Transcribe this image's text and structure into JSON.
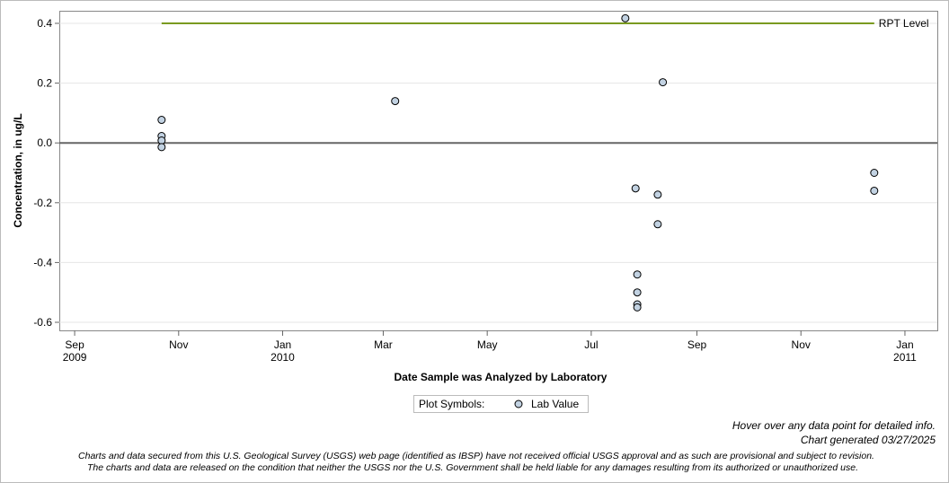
{
  "chart_data": {
    "type": "scatter",
    "y_label": "Concentration, in ug/L",
    "x_label": "Date Sample was Analyzed by Laboratory",
    "xlim": [
      "2009-08-23",
      "2011-01-20"
    ],
    "ylim": [
      -0.627,
      0.442
    ],
    "yticks": [
      {
        "value": 0.4,
        "label": "0.4"
      },
      {
        "value": 0.2,
        "label": "0.2"
      },
      {
        "value": 0,
        "label": "0.0"
      },
      {
        "value": -0.2,
        "label": "-0.2"
      },
      {
        "value": -0.4,
        "label": "-0.4"
      },
      {
        "value": -0.6,
        "label": "-0.6"
      }
    ],
    "xticks": [
      {
        "value": "2009-09-01",
        "label": "Sep\n2009"
      },
      {
        "value": "2009-11-01",
        "label": "Nov"
      },
      {
        "value": "2010-01-01",
        "label": "Jan\n2010"
      },
      {
        "value": "2010-03-01",
        "label": "Mar"
      },
      {
        "value": "2010-05-01",
        "label": "May"
      },
      {
        "value": "2010-07-01",
        "label": "Jul"
      },
      {
        "value": "2010-09-01",
        "label": "Sep"
      },
      {
        "value": "2010-11-01",
        "label": "Nov"
      },
      {
        "value": "2011-01-01",
        "label": "Jan\n2011"
      }
    ],
    "grid": true,
    "zero_line": 0,
    "reference_line": {
      "name": "RPT Level",
      "value": 0.4,
      "x": [
        "2009-10-22",
        "2010-12-14"
      ],
      "color": "#7a9a20"
    },
    "series": [
      {
        "name": "Lab Value",
        "color": "#c2d2e2",
        "x": [
          "2009-10-22",
          "2009-10-22",
          "2009-10-22",
          "2009-10-22",
          "2010-03-08",
          "2010-07-21",
          "2010-08-12",
          "2010-07-27",
          "2010-07-28",
          "2010-07-28",
          "2010-07-28",
          "2010-07-28",
          "2010-08-09",
          "2010-08-09",
          "2010-12-14",
          "2010-12-14"
        ],
        "values": [
          0.077,
          0.023,
          0.008,
          -0.014,
          0.14,
          0.417,
          0.203,
          -0.152,
          -0.44,
          -0.5,
          -0.54,
          -0.55,
          -0.173,
          -0.272,
          -0.1,
          -0.16
        ]
      }
    ],
    "legend_title": "Plot Symbols:",
    "notes": [
      "Hover over any data point for detailed info.",
      "Chart generated 03/27/2025"
    ],
    "disclaimer": [
      "Charts and data secured from this U.S. Geological Survey (USGS) web page (identified as IBSP) have not received official USGS approval and as such are provisional and subject to revision.",
      "The charts and data are released on the condition that neither the USGS nor the U.S. Government shall be held liable for any damages resulting from its authorized or unauthorized use."
    ]
  }
}
